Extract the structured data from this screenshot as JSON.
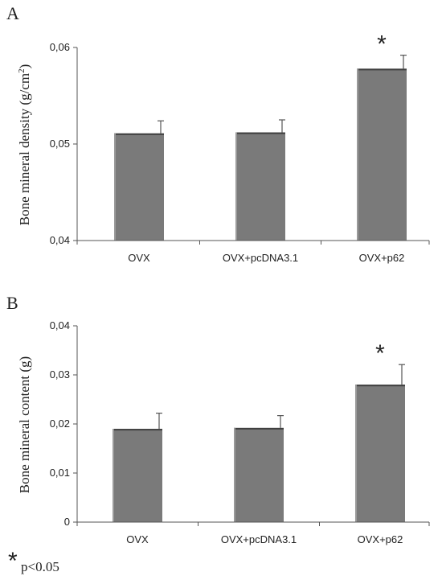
{
  "chart_data": [
    {
      "panel_label": "A",
      "type": "bar",
      "categories": [
        "OVX",
        "OVX+pcDNA3.1",
        "OVX+p62"
      ],
      "values": [
        0.0511,
        0.0512,
        0.0578
      ],
      "errors": [
        0.0013,
        0.0013,
        0.0014
      ],
      "significance": [
        "",
        "",
        "*"
      ],
      "ylabel_main": "Bone mineral density (g/cm",
      "ylabel_sup": "2",
      "ylabel_end": ")",
      "ylim": [
        0.04,
        0.06
      ],
      "yticks": [
        0.04,
        0.05,
        0.06
      ],
      "ytick_labels": [
        "0,04",
        "0,05",
        "0,06"
      ],
      "grid": false,
      "bar_color": "#7a7a7a"
    },
    {
      "panel_label": "B",
      "type": "bar",
      "categories": [
        "OVX",
        "OVX+pcDNA3.1",
        "OVX+p62"
      ],
      "values": [
        0.019,
        0.0192,
        0.028
      ],
      "errors": [
        0.0032,
        0.0025,
        0.0041
      ],
      "significance": [
        "",
        "",
        "*"
      ],
      "ylabel_main": "Bone mineral content (g)",
      "ylabel_sup": "",
      "ylabel_end": "",
      "ylim": [
        0,
        0.04
      ],
      "yticks": [
        0,
        0.01,
        0.02,
        0.03,
        0.04
      ],
      "ytick_labels": [
        "0",
        "0,01",
        "0,02",
        "0,03",
        "0,04"
      ],
      "grid": false,
      "bar_color": "#7a7a7a"
    }
  ],
  "footnote": {
    "symbol": "*",
    "text": "p<0.05"
  }
}
